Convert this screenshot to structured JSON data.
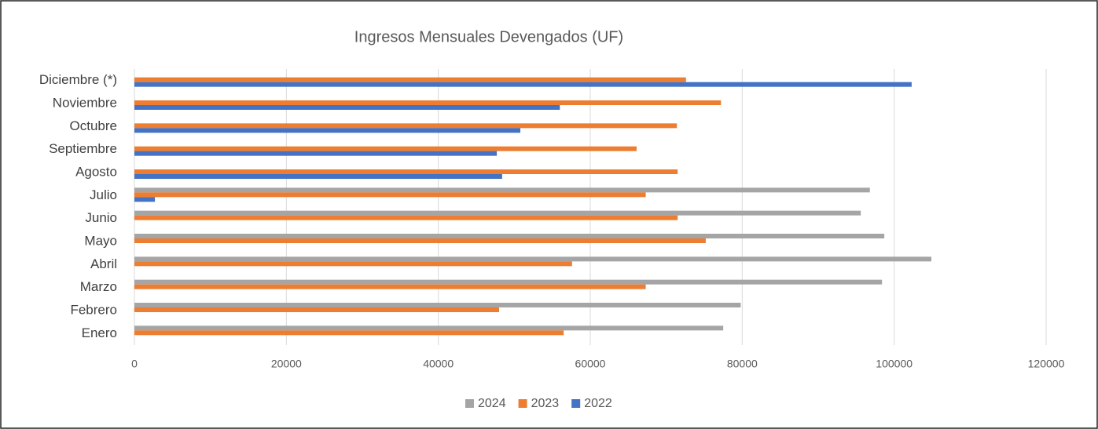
{
  "chart_data": {
    "type": "barh",
    "title": "Ingresos Mensuales Devengados (UF)",
    "categories": [
      "Enero",
      "Febrero",
      "Marzo",
      "Abril",
      "Mayo",
      "Junio",
      "Julio",
      "Agosto",
      "Septiembre",
      "Octubre",
      "Noviembre",
      "Diciembre (*)"
    ],
    "series": [
      {
        "name": "2024",
        "color": "#a5a5a5",
        "values": [
          77500,
          79800,
          98400,
          104900,
          98700,
          95600,
          96800,
          null,
          null,
          null,
          null,
          null
        ]
      },
      {
        "name": "2023",
        "color": "#ed7d31",
        "values": [
          56500,
          48000,
          67300,
          57600,
          75200,
          71500,
          67300,
          71500,
          66100,
          71400,
          77200,
          72600
        ]
      },
      {
        "name": "2022",
        "color": "#4472c4",
        "values": [
          null,
          null,
          null,
          null,
          null,
          null,
          2700,
          48400,
          47700,
          50800,
          56000,
          102300
        ]
      }
    ],
    "xlim": [
      0,
      120000
    ],
    "xticks": [
      0,
      20000,
      40000,
      60000,
      80000,
      100000,
      120000
    ],
    "grid": true,
    "legend": "bottom"
  }
}
